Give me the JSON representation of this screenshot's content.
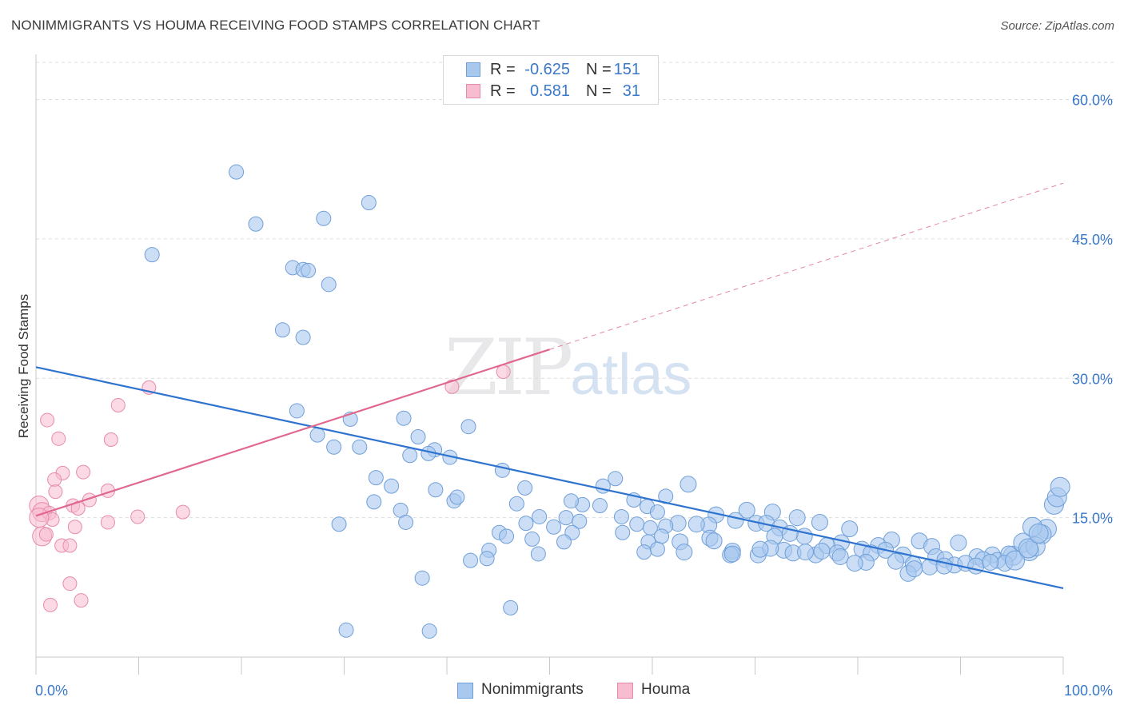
{
  "title": "NONIMMIGRANTS VS HOUMA RECEIVING FOOD STAMPS CORRELATION CHART",
  "source": "Source: ZipAtlas.com",
  "watermark": {
    "zip": "ZIP",
    "atlas": "atlas"
  },
  "stats": {
    "rows": [
      {
        "r_label": "R =",
        "r_value": "-0.625",
        "n_label": "N =",
        "n_value": "151"
      },
      {
        "r_label": "R =",
        "r_value": "0.581",
        "n_label": "N =",
        "n_value": "31"
      }
    ]
  },
  "legend": {
    "items": [
      "Nonimmigrants",
      "Houma"
    ]
  },
  "colors": {
    "blue_fill": "#a9c8ee",
    "blue_edge": "#6f9fd8",
    "blue_line": "#2f73d0",
    "pink_fill": "#f7bcd0",
    "pink_edge": "#e88ba9",
    "pink_line": "#e0688f",
    "axis_text": "#3a78c9",
    "grid": "#dcdcdc"
  },
  "chart_data": {
    "type": "scatter",
    "title": "NONIMMIGRANTS VS HOUMA RECEIVING FOOD STAMPS CORRELATION CHART",
    "xlabel": "",
    "ylabel": "Receiving Food Stamps",
    "xlim": [
      0,
      100
    ],
    "ylim": [
      0,
      64
    ],
    "x_tick_labels": [
      "0.0%",
      "100.0%"
    ],
    "y_ticks": [
      15,
      30,
      45,
      60
    ],
    "y_tick_labels": [
      "15.0%",
      "30.0%",
      "45.0%",
      "60.0%"
    ],
    "series": [
      {
        "name": "Nonimmigrants",
        "trend": {
          "x": [
            0,
            100
          ],
          "y": [
            31.2,
            7.4
          ],
          "dashed_extension": false
        },
        "points": [
          [
            19.5,
            52.2
          ],
          [
            32.4,
            48.9
          ],
          [
            28.0,
            47.2
          ],
          [
            21.4,
            46.6
          ],
          [
            11.3,
            43.3
          ],
          [
            25.0,
            41.9
          ],
          [
            26.0,
            41.7
          ],
          [
            26.5,
            41.6
          ],
          [
            28.5,
            40.1
          ],
          [
            24.0,
            35.2
          ],
          [
            26.0,
            34.4
          ],
          [
            25.4,
            26.5
          ],
          [
            35.8,
            25.7
          ],
          [
            30.6,
            25.6
          ],
          [
            42.1,
            24.8
          ],
          [
            27.4,
            23.9
          ],
          [
            37.2,
            23.7
          ],
          [
            29.0,
            22.6
          ],
          [
            31.5,
            22.6
          ],
          [
            38.8,
            22.3
          ],
          [
            36.4,
            21.7
          ],
          [
            38.2,
            21.9
          ],
          [
            40.3,
            21.5
          ],
          [
            45.4,
            20.1
          ],
          [
            56.4,
            19.2
          ],
          [
            33.1,
            19.3
          ],
          [
            34.6,
            18.4
          ],
          [
            63.5,
            18.6
          ],
          [
            38.9,
            18.0
          ],
          [
            47.6,
            18.2
          ],
          [
            55.2,
            18.4
          ],
          [
            61.3,
            17.3
          ],
          [
            40.7,
            16.8
          ],
          [
            32.9,
            16.7
          ],
          [
            53.2,
            16.4
          ],
          [
            58.2,
            16.9
          ],
          [
            41.0,
            17.2
          ],
          [
            46.8,
            16.5
          ],
          [
            52.1,
            16.8
          ],
          [
            59.5,
            16.2
          ],
          [
            54.9,
            16.3
          ],
          [
            60.5,
            15.6
          ],
          [
            35.5,
            15.8
          ],
          [
            71.7,
            15.6
          ],
          [
            69.2,
            15.8
          ],
          [
            51.6,
            15.0
          ],
          [
            57.0,
            15.1
          ],
          [
            66.2,
            15.3
          ],
          [
            49.0,
            15.1
          ],
          [
            36.0,
            14.5
          ],
          [
            29.5,
            14.3
          ],
          [
            47.7,
            14.4
          ],
          [
            52.9,
            14.6
          ],
          [
            62.5,
            14.4
          ],
          [
            65.5,
            14.2
          ],
          [
            58.5,
            14.3
          ],
          [
            59.8,
            13.9
          ],
          [
            61.3,
            14.1
          ],
          [
            64.3,
            14.3
          ],
          [
            68.1,
            14.7
          ],
          [
            70.1,
            14.4
          ],
          [
            71.1,
            14.4
          ],
          [
            74.1,
            15.0
          ],
          [
            76.3,
            14.5
          ],
          [
            72.4,
            13.9
          ],
          [
            50.4,
            14.0
          ],
          [
            60.9,
            13.0
          ],
          [
            65.6,
            12.8
          ],
          [
            48.3,
            12.7
          ],
          [
            66.0,
            12.5
          ],
          [
            74.8,
            13.0
          ],
          [
            73.4,
            13.3
          ],
          [
            45.1,
            13.4
          ],
          [
            52.2,
            13.4
          ],
          [
            45.8,
            13.0
          ],
          [
            57.1,
            13.4
          ],
          [
            59.6,
            12.4
          ],
          [
            62.7,
            12.4
          ],
          [
            71.9,
            13.0
          ],
          [
            78.4,
            12.3
          ],
          [
            83.3,
            12.6
          ],
          [
            86.0,
            12.5
          ],
          [
            89.8,
            12.3
          ],
          [
            79.2,
            13.8
          ],
          [
            51.4,
            12.4
          ],
          [
            67.8,
            11.4
          ],
          [
            72.8,
            11.5
          ],
          [
            73.7,
            11.2
          ],
          [
            75.9,
            11.0
          ],
          [
            77.0,
            12.0
          ],
          [
            80.4,
            11.6
          ],
          [
            82.0,
            12.0
          ],
          [
            76.5,
            11.4
          ],
          [
            78.0,
            11.2
          ],
          [
            81.3,
            11.2
          ],
          [
            82.7,
            11.5
          ],
          [
            84.4,
            11.0
          ],
          [
            87.2,
            11.9
          ],
          [
            87.6,
            10.8
          ],
          [
            88.5,
            10.5
          ],
          [
            91.6,
            10.8
          ],
          [
            93.1,
            11.0
          ],
          [
            95.1,
            10.9
          ],
          [
            96.1,
            12.3
          ],
          [
            93.6,
            10.4
          ],
          [
            94.7,
            11.1
          ],
          [
            98.4,
            13.8
          ],
          [
            97.9,
            13.2
          ],
          [
            97.0,
            14.0
          ],
          [
            99.1,
            16.4
          ],
          [
            99.4,
            17.2
          ],
          [
            99.7,
            18.3
          ],
          [
            44.1,
            11.5
          ],
          [
            48.9,
            11.1
          ],
          [
            59.2,
            11.3
          ],
          [
            60.5,
            11.6
          ],
          [
            63.1,
            11.3
          ],
          [
            67.6,
            11.0
          ],
          [
            70.3,
            11.0
          ],
          [
            71.5,
            11.7
          ],
          [
            74.9,
            11.3
          ],
          [
            78.3,
            10.8
          ],
          [
            80.8,
            10.2
          ],
          [
            83.7,
            10.3
          ],
          [
            85.4,
            10.0
          ],
          [
            87.0,
            9.7
          ],
          [
            89.4,
            9.9
          ],
          [
            90.5,
            10.1
          ],
          [
            92.2,
            10.5
          ],
          [
            94.3,
            10.1
          ],
          [
            96.7,
            11.4
          ],
          [
            97.3,
            11.9
          ],
          [
            42.3,
            10.4
          ],
          [
            43.9,
            10.6
          ],
          [
            37.6,
            8.5
          ],
          [
            67.8,
            11.1
          ],
          [
            38.3,
            2.8
          ],
          [
            46.2,
            5.3
          ],
          [
            30.2,
            2.9
          ],
          [
            70.5,
            11.6
          ],
          [
            79.7,
            10.1
          ],
          [
            84.9,
            9.0
          ],
          [
            85.5,
            9.5
          ],
          [
            88.4,
            9.8
          ],
          [
            91.5,
            9.8
          ],
          [
            92.9,
            10.2
          ],
          [
            95.3,
            10.4
          ],
          [
            96.6,
            11.7
          ],
          [
            97.6,
            13.3
          ]
        ]
      },
      {
        "name": "Houma",
        "trend": {
          "x": [
            0,
            100
          ],
          "y": [
            15.2,
            51.0
          ],
          "solid_until_x": 50
        },
        "points": [
          [
            11.0,
            29.0
          ],
          [
            40.5,
            29.1
          ],
          [
            45.5,
            30.7
          ],
          [
            8.0,
            27.1
          ],
          [
            1.1,
            25.5
          ],
          [
            2.2,
            23.5
          ],
          [
            7.3,
            23.4
          ],
          [
            2.6,
            19.8
          ],
          [
            4.6,
            19.9
          ],
          [
            1.8,
            19.1
          ],
          [
            1.9,
            17.8
          ],
          [
            7.0,
            17.9
          ],
          [
            0.3,
            16.3
          ],
          [
            3.6,
            16.3
          ],
          [
            5.2,
            16.9
          ],
          [
            0.6,
            15.6
          ],
          [
            1.3,
            15.5
          ],
          [
            4.1,
            16.0
          ],
          [
            14.3,
            15.6
          ],
          [
            1.6,
            14.8
          ],
          [
            7.0,
            14.5
          ],
          [
            3.8,
            14.0
          ],
          [
            0.6,
            13.0
          ],
          [
            1.0,
            13.2
          ],
          [
            9.9,
            15.1
          ],
          [
            2.5,
            12.0
          ],
          [
            3.3,
            12.0
          ],
          [
            3.3,
            7.9
          ],
          [
            4.4,
            6.1
          ],
          [
            1.4,
            5.6
          ],
          [
            0.3,
            15.0
          ]
        ]
      }
    ]
  }
}
